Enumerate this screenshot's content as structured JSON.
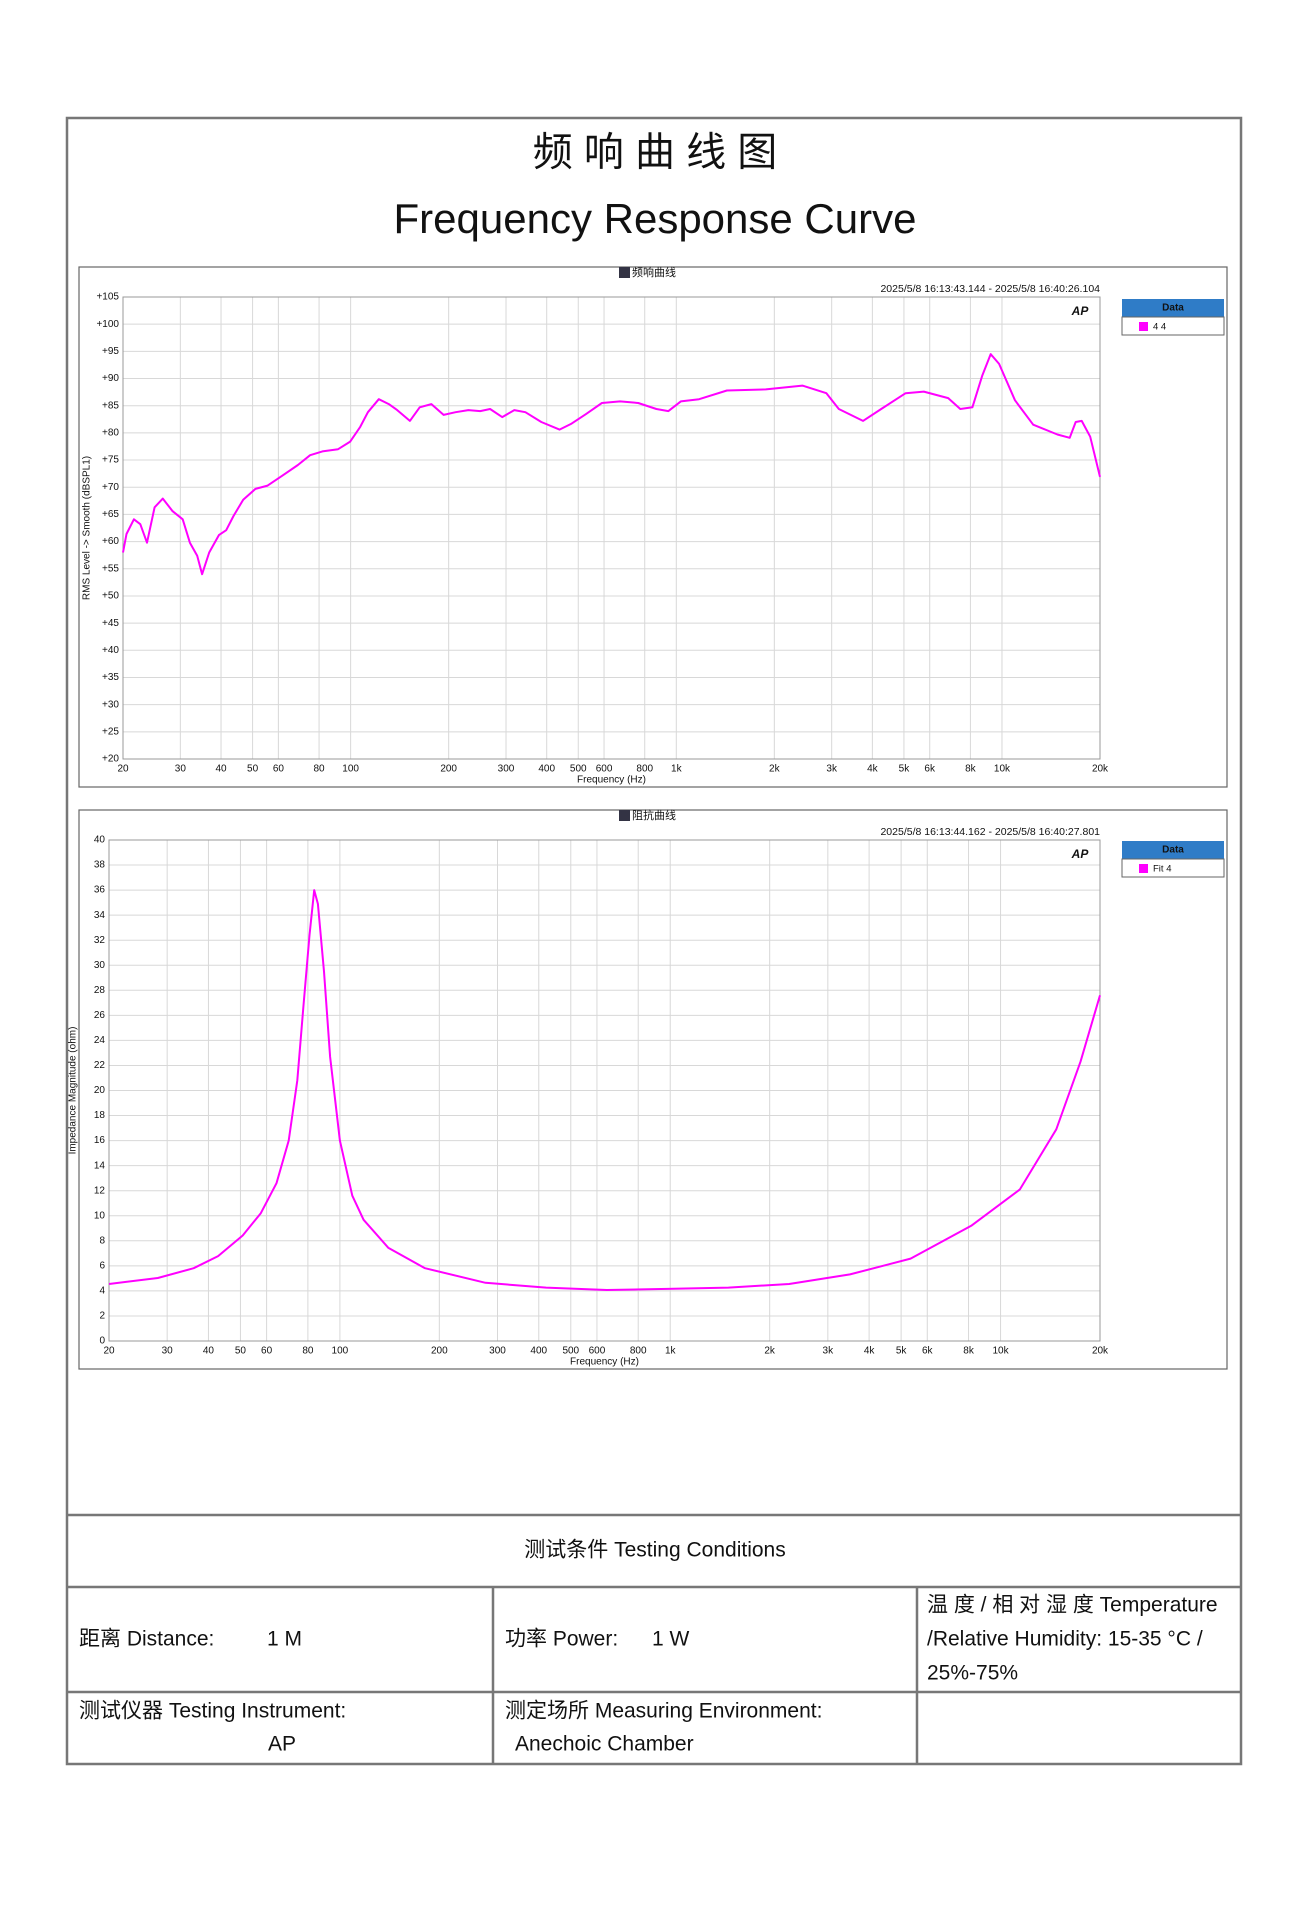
{
  "header": {
    "title_cn": "频 响 曲 线 图",
    "title_en": "Frequency Response Curve"
  },
  "chart_data": [
    {
      "type": "line",
      "title": "频响曲线",
      "subtitle": "2025/5/8 16:13:43.144 - 2025/5/8 16:40:26.104",
      "logo": "AP",
      "x_label": "Frequency (Hz)",
      "y_label": "RMS Level -> Smooth (dBSPL1)",
      "xscale": "log",
      "grid": true,
      "legend": "right",
      "legend_title": "Data",
      "xlim": [
        20,
        20000
      ],
      "ylim": [
        20,
        105
      ],
      "xticks": [
        20,
        30,
        40,
        50,
        60,
        80,
        100,
        200,
        300,
        400,
        500,
        600,
        800,
        {
          "value": 1000,
          "label": "1k"
        },
        {
          "value": 2000,
          "label": "2k"
        },
        {
          "value": 3000,
          "label": "3k"
        },
        {
          "value": 4000,
          "label": "4k"
        },
        {
          "value": 5000,
          "label": "5k"
        },
        {
          "value": 6000,
          "label": "6k"
        },
        {
          "value": 8000,
          "label": "8k"
        },
        {
          "value": 10000,
          "label": "10k"
        },
        {
          "value": 20000,
          "label": "20k"
        }
      ],
      "yticks": [
        {
          "value": 20,
          "label": "+20"
        },
        {
          "value": 25,
          "label": "+25"
        },
        {
          "value": 30,
          "label": "+30"
        },
        {
          "value": 35,
          "label": "+35"
        },
        {
          "value": 40,
          "label": "+40"
        },
        {
          "value": 45,
          "label": "+45"
        },
        {
          "value": 50,
          "label": "+50"
        },
        {
          "value": 55,
          "label": "+55"
        },
        {
          "value": 60,
          "label": "+60"
        },
        {
          "value": 65,
          "label": "+65"
        },
        {
          "value": 70,
          "label": "+70"
        },
        {
          "value": 75,
          "label": "+75"
        },
        {
          "value": 80,
          "label": "+80"
        },
        {
          "value": 85,
          "label": "+85"
        },
        {
          "value": 90,
          "label": "+90"
        },
        {
          "value": 95,
          "label": "+95"
        },
        {
          "value": 100,
          "label": "+100"
        },
        {
          "value": 105,
          "label": "+105"
        }
      ],
      "x": [
        20,
        20.5,
        21.6,
        22.6,
        23.7,
        25,
        26.5,
        28.4,
        30.5,
        32.1,
        33.8,
        35,
        36.8,
        39.4,
        41.5,
        43.7,
        46.8,
        51,
        55.6,
        61.6,
        68.9,
        75.1,
        81.9,
        91.5,
        99.7,
        107,
        113,
        122,
        131,
        139,
        152,
        163,
        177,
        193,
        210,
        230,
        250,
        268,
        292,
        318,
        344,
        385,
        438,
        477,
        529,
        591,
        672,
        764,
        869,
        946,
        1032,
        1175,
        1430,
        1883,
        2439,
        2891,
        3155,
        3744,
        4257,
        5058,
        5755,
        6837,
        7449,
        8115,
        8695,
        9234,
        9799,
        10963,
        12473,
        14799,
        16142,
        16837,
        17574,
        18660,
        20000
      ],
      "series": [
        {
          "name": "4 4",
          "color": "#ff00ff",
          "values": [
            58,
            61.4,
            64.1,
            63.2,
            59.8,
            66.3,
            67.9,
            65.6,
            64.1,
            59.8,
            57.4,
            54,
            58,
            61.2,
            62.1,
            64.7,
            67.7,
            69.7,
            70.3,
            72.1,
            74.1,
            75.9,
            76.6,
            77,
            78.4,
            81.1,
            83.8,
            86.2,
            85.3,
            84.2,
            82.2,
            84.7,
            85.3,
            83.3,
            83.8,
            84.2,
            84,
            84.4,
            82.9,
            84.2,
            83.8,
            82,
            80.6,
            81.7,
            83.5,
            85.5,
            85.8,
            85.5,
            84.4,
            84,
            85.8,
            86.2,
            87.8,
            88,
            88.7,
            87.3,
            84.4,
            82.2,
            84.4,
            87.3,
            87.6,
            86.4,
            84.4,
            84.7,
            90.5,
            94.5,
            92.7,
            86,
            81.5,
            79.7,
            79.1,
            82,
            82.2,
            79.3,
            71.9
          ]
        }
      ]
    },
    {
      "type": "line",
      "title": "阻抗曲线",
      "subtitle": "2025/5/8 16:13:44.162 - 2025/5/8 16:40:27.801",
      "logo": "AP",
      "x_label": "Frequency (Hz)",
      "y_label": "Impedance Magnitude (ohm)",
      "xscale": "log",
      "grid": true,
      "legend": "right",
      "legend_title": "Data",
      "xlim": [
        20,
        20000
      ],
      "ylim": [
        0,
        40
      ],
      "xticks": [
        20,
        30,
        40,
        50,
        60,
        80,
        100,
        200,
        300,
        400,
        500,
        600,
        800,
        {
          "value": 1000,
          "label": "1k"
        },
        {
          "value": 2000,
          "label": "2k"
        },
        {
          "value": 3000,
          "label": "3k"
        },
        {
          "value": 4000,
          "label": "4k"
        },
        {
          "value": 5000,
          "label": "5k"
        },
        {
          "value": 6000,
          "label": "6k"
        },
        {
          "value": 8000,
          "label": "8k"
        },
        {
          "value": 10000,
          "label": "10k"
        },
        {
          "value": 20000,
          "label": "20k"
        }
      ],
      "yticks": [
        0,
        2,
        4,
        6,
        8,
        10,
        12,
        14,
        16,
        18,
        20,
        22,
        24,
        26,
        28,
        30,
        32,
        34,
        36,
        38,
        40
      ],
      "x": [
        20,
        28.1,
        36.1,
        42.8,
        50.8,
        57.6,
        64.3,
        70,
        74.3,
        77.5,
        80.9,
        83.6,
        85.8,
        89.5,
        93.4,
        100,
        109,
        118,
        140,
        181,
        276,
        421,
        643,
        982,
        1500,
        2290,
        3500,
        5340,
        8150,
        11440,
        14750,
        17460,
        20000
      ],
      "series": [
        {
          "name": "Fit 4",
          "color": "#ff00ff",
          "values": [
            4.55,
            5.03,
            5.81,
            6.78,
            8.42,
            10.2,
            12.6,
            16,
            20.8,
            26.6,
            32.4,
            36,
            34.9,
            29.5,
            22.7,
            16,
            11.6,
            9.68,
            7.45,
            5.81,
            4.65,
            4.26,
            4.07,
            4.16,
            4.26,
            4.55,
            5.32,
            6.58,
            9.2,
            12.1,
            16.9,
            22.3,
            27.6
          ]
        }
      ]
    }
  ],
  "conditions": {
    "title": "测试条件  Testing  Conditions",
    "distance": {
      "label": "距离 Distance:",
      "value": "1 M"
    },
    "power": {
      "label": "功率 Power:",
      "value": "1 W"
    },
    "climate": [
      "温 度 / 相 对 湿 度   Temperature",
      "/Relative  Humidity:  15-35  °C  /",
      "25%-75%"
    ],
    "instrument": {
      "label": "测试仪器 Testing Instrument:",
      "value": "AP"
    },
    "environment": {
      "label": "测定场所 Measuring Environment:",
      "value": "Anechoic Chamber"
    }
  }
}
